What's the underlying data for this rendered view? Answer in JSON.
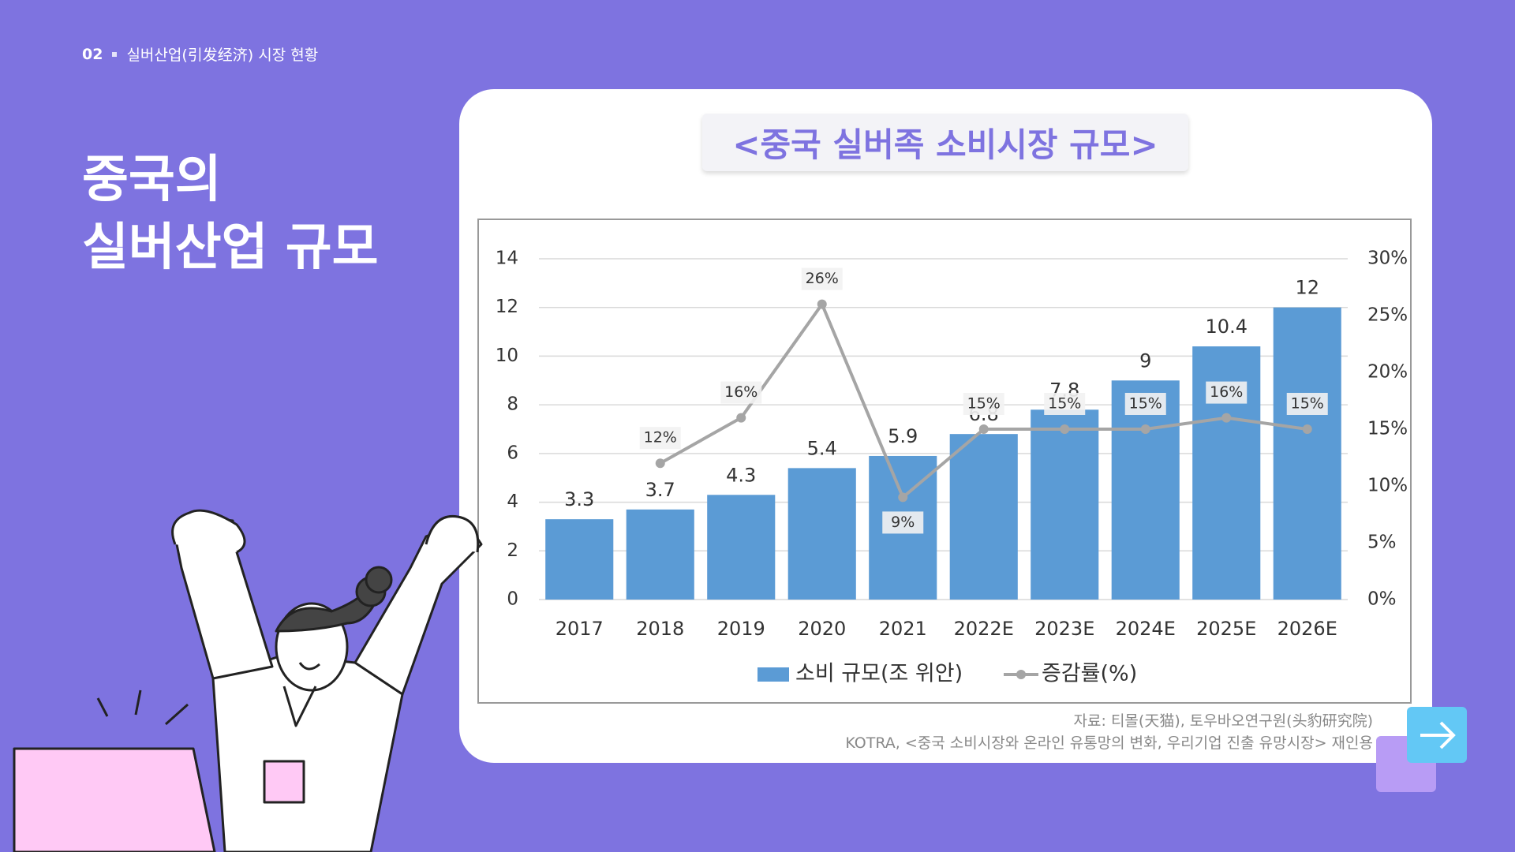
{
  "header": {
    "number": "02",
    "section": "실버산업(引发经济) 시장 현황"
  },
  "heading": {
    "line1": "중국의",
    "line2": "실버산업 규모"
  },
  "source": {
    "line1": "자료: 티몰(天猫), 토우바오연구원(头豹研究院)",
    "line2": "KOTRA, <중국 소비시장와 온라인 유통망의 변화, 우리기업 진출 유망시장> 재인용"
  },
  "chart_data": {
    "type": "bar-line",
    "title": "<중국 실버족 소비시장 규모>",
    "categories": [
      "2017",
      "2018",
      "2019",
      "2020",
      "2021",
      "2022E",
      "2023E",
      "2024E",
      "2025E",
      "2026E"
    ],
    "series": [
      {
        "name": "소비 규모(조 위안)",
        "color": "#5b9bd5",
        "type": "bar",
        "values": [
          3.3,
          3.7,
          4.3,
          5.4,
          5.9,
          6.8,
          7.8,
          9,
          10.4,
          12
        ]
      },
      {
        "name": "증감률(%)",
        "color": "#a5a5a5",
        "type": "line",
        "axis": "y2",
        "values": [
          null,
          12,
          16,
          26,
          9,
          15,
          15,
          15,
          16,
          15
        ],
        "value_labels": [
          null,
          "12%",
          "16%",
          "26%",
          "9%",
          "15%",
          "15%",
          "15%",
          "16%",
          "15%"
        ]
      }
    ],
    "ylim": [
      0,
      14
    ],
    "yticks": [
      0,
      2,
      4,
      6,
      8,
      10,
      12,
      14
    ],
    "y2lim": [
      0,
      30
    ],
    "y2ticks": [
      {
        "value": 0,
        "label": "0%"
      },
      {
        "value": 5,
        "label": "5%"
      },
      {
        "value": 10,
        "label": "10%"
      },
      {
        "value": 15,
        "label": "15%"
      },
      {
        "value": 20,
        "label": "20%"
      },
      {
        "value": 25,
        "label": "25%"
      },
      {
        "value": 30,
        "label": "30%"
      }
    ],
    "grid": true,
    "legend": "bottom"
  }
}
